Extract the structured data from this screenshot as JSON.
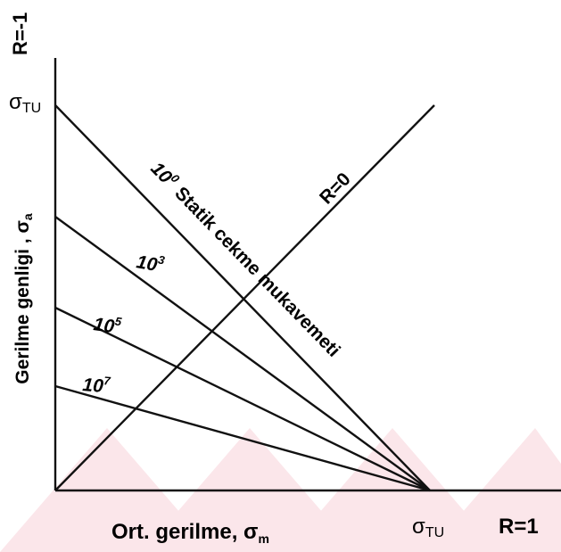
{
  "labels": {
    "r_minus_1": "R=-1",
    "r_0": "R=0",
    "r_1": "R=1"
  },
  "y_axis": {
    "text": "Gerilme genligi  , σ",
    "subscript": "a",
    "tick": {
      "symbol": "σ",
      "subscript": "TU"
    }
  },
  "x_axis": {
    "text": "Ort. gerilme, σ",
    "subscript": "m",
    "tick": {
      "symbol": "σ",
      "subscript": "TU"
    }
  },
  "curves": [
    {
      "base": "10",
      "exponent": "0",
      "text": "Statik cekme mukavemeti"
    },
    {
      "base": "10",
      "exponent": "3"
    },
    {
      "base": "10",
      "exponent": "5"
    },
    {
      "base": "10",
      "exponent": "7"
    }
  ]
}
